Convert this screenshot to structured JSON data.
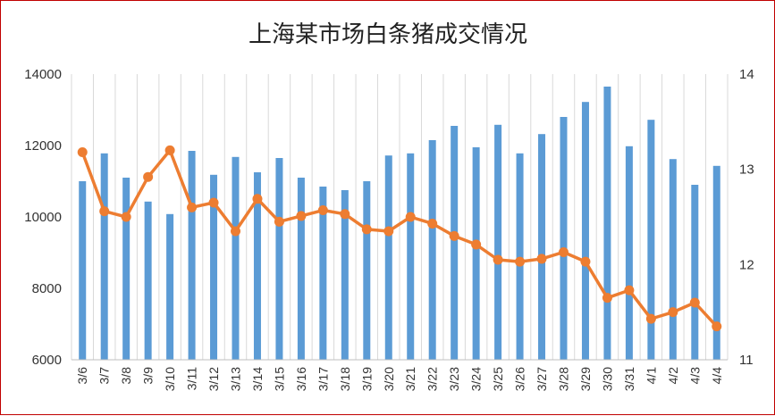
{
  "chart_data": {
    "type": "bar+line",
    "title": "上海某市场白条猪成交情况",
    "categories": [
      "3/6",
      "3/7",
      "3/8",
      "3/9",
      "3/10",
      "3/11",
      "3/12",
      "3/13",
      "3/14",
      "3/15",
      "3/16",
      "3/17",
      "3/18",
      "3/19",
      "3/20",
      "3/21",
      "3/22",
      "3/23",
      "3/24",
      "3/25",
      "3/26",
      "3/27",
      "3/28",
      "3/29",
      "3/30",
      "3/31",
      "4/1",
      "4/2",
      "4/3",
      "4/4"
    ],
    "series": [
      {
        "type": "bar",
        "axis": "left",
        "color": "#5b9bd5",
        "values": [
          11000,
          11780,
          11100,
          10430,
          10080,
          11850,
          11180,
          11680,
          11250,
          11650,
          11100,
          10850,
          10750,
          11000,
          11720,
          11780,
          12150,
          12550,
          11950,
          12580,
          11780,
          12320,
          12800,
          13220,
          13650,
          11980,
          12720,
          11620,
          10900,
          11430
        ]
      },
      {
        "type": "line",
        "axis": "right",
        "color": "#ed7d31",
        "values": [
          13.18,
          12.56,
          12.5,
          12.92,
          13.2,
          12.6,
          12.65,
          12.35,
          12.69,
          12.45,
          12.51,
          12.57,
          12.53,
          12.37,
          12.35,
          12.5,
          12.43,
          12.3,
          12.21,
          12.05,
          12.03,
          12.06,
          12.13,
          12.03,
          11.65,
          11.73,
          11.43,
          11.5,
          11.6,
          11.35
        ]
      }
    ],
    "y_left": {
      "min": 6000,
      "max": 14000,
      "ticks": [
        "6000",
        "8000",
        "10000",
        "12000",
        "14000"
      ]
    },
    "y_right": {
      "min": 11,
      "max": 14,
      "ticks": [
        "11",
        "12",
        "13",
        "14"
      ]
    },
    "grid": "vertical",
    "legend": "none"
  }
}
